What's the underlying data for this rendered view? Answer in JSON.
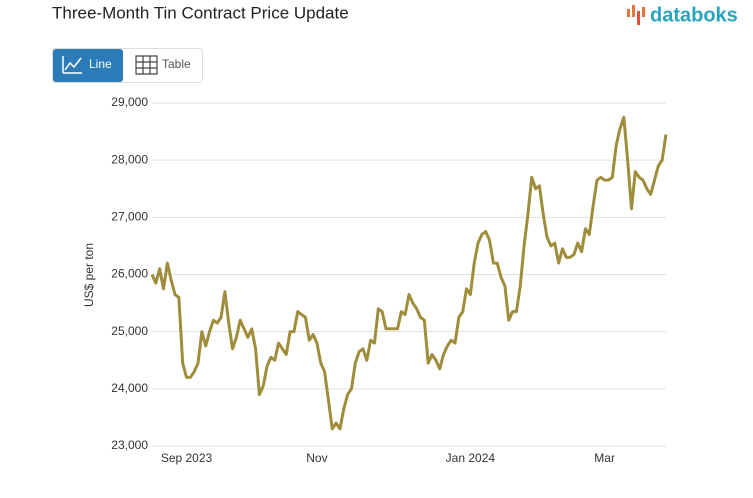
{
  "header": {
    "title": "Three-Month Tin Contract Price Update",
    "logo": "databoks"
  },
  "ui": {
    "buttons": [
      "Line",
      "Table"
    ]
  },
  "chart_data": {
    "type": "line",
    "ylabel": "US$ per ton",
    "categories": [
      null,
      null,
      null,
      null,
      null,
      null,
      null,
      null,
      null,
      "Sep 2023",
      null,
      null,
      null,
      null,
      null,
      null,
      null,
      null,
      null,
      null,
      null,
      null,
      null,
      null,
      null,
      null,
      null,
      null,
      null,
      null,
      null,
      null,
      null,
      null,
      null,
      null,
      null,
      null,
      null,
      null,
      null,
      null,
      null,
      "Nov",
      null,
      null,
      null,
      null,
      null,
      null,
      null,
      null,
      null,
      null,
      null,
      null,
      null,
      null,
      null,
      null,
      null,
      null,
      null,
      null,
      null,
      null,
      null,
      null,
      null,
      null,
      null,
      null,
      null,
      null,
      null,
      null,
      null,
      null,
      null,
      null,
      null,
      null,
      null,
      "Jan 2024",
      null,
      null,
      null,
      null,
      null,
      null,
      null,
      null,
      null,
      null,
      null,
      null,
      null,
      null,
      null,
      null,
      null,
      null,
      null,
      null,
      null,
      null,
      null,
      null,
      null,
      null,
      null,
      null,
      null,
      null,
      null,
      null,
      null,
      null,
      "Mar",
      null,
      null,
      null,
      null,
      null,
      null,
      null,
      null,
      null,
      null,
      null,
      null,
      null,
      null,
      null,
      null
    ],
    "series": [
      {
        "name": "Tin",
        "color": "#a08d3b",
        "values": [
          26000,
          25850,
          26100,
          25750,
          26200,
          25900,
          25650,
          25600,
          24450,
          24200,
          24200,
          24300,
          24450,
          25000,
          24750,
          25000,
          25200,
          25150,
          25250,
          25700,
          25150,
          24700,
          24900,
          25200,
          25050,
          24900,
          25050,
          24700,
          23900,
          24050,
          24400,
          24550,
          24500,
          24800,
          24700,
          24600,
          25000,
          25000,
          25350,
          25300,
          25250,
          24850,
          24950,
          24800,
          24450,
          24300,
          23800,
          23300,
          23400,
          23300,
          23650,
          23900,
          24000,
          24450,
          24650,
          24700,
          24500,
          24850,
          24800,
          25400,
          25350,
          25050,
          25050,
          25050,
          25050,
          25350,
          25300,
          25650,
          25500,
          25400,
          25250,
          25200,
          24450,
          24600,
          24500,
          24350,
          24600,
          24750,
          24850,
          24800,
          25250,
          25350,
          25750,
          25650,
          26200,
          26550,
          26700,
          26750,
          26600,
          26200,
          26200,
          25950,
          25800,
          25200,
          25350,
          25350,
          25800,
          26500,
          27050,
          27700,
          27500,
          27550,
          27050,
          26650,
          26500,
          26550,
          26200,
          26450,
          26300,
          26300,
          26350,
          26550,
          26400,
          26800,
          26700,
          27200,
          27650,
          27700,
          27650,
          27650,
          27700,
          28250,
          28550,
          28750,
          28000,
          27150,
          27800,
          27700,
          27650,
          27500,
          27400,
          27650,
          27900,
          28000,
          28450
        ]
      }
    ],
    "ylim": [
      23000,
      29000
    ],
    "yticks": [
      {
        "value": 23000,
        "label": "23,000"
      },
      {
        "value": 24000,
        "label": "24,000"
      },
      {
        "value": 25000,
        "label": "25,000"
      },
      {
        "value": 26000,
        "label": "26,000"
      },
      {
        "value": 27000,
        "label": "27,000"
      },
      {
        "value": 28000,
        "label": "28,000"
      },
      {
        "value": 29000,
        "label": "29,000"
      }
    ],
    "grid": true
  }
}
